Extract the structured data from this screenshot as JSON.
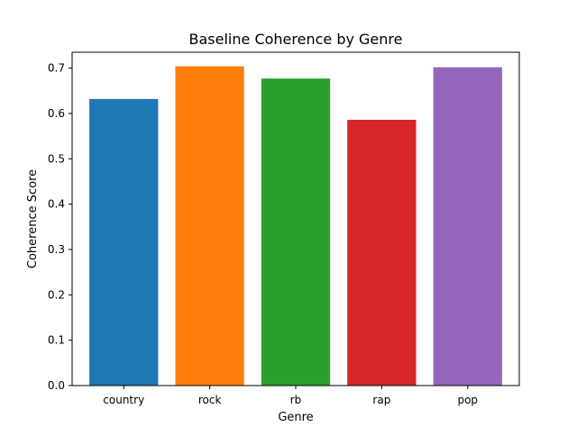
{
  "chart_data": {
    "type": "bar",
    "title": "Baseline Coherence by Genre",
    "xlabel": "Genre",
    "ylabel": "Coherence Score",
    "categories": [
      "country",
      "rock",
      "rb",
      "rap",
      "pop"
    ],
    "values": [
      0.632,
      0.704,
      0.677,
      0.586,
      0.702
    ],
    "colors": [
      "#1f77b4",
      "#ff7f0e",
      "#2ca02c",
      "#d62728",
      "#9467bd"
    ],
    "ylim": [
      0,
      0.735
    ],
    "yticks": [
      0.0,
      0.1,
      0.2,
      0.3,
      0.4,
      0.5,
      0.6,
      0.7
    ],
    "ytick_labels": [
      "0.0",
      "0.1",
      "0.2",
      "0.3",
      "0.4",
      "0.5",
      "0.6",
      "0.7"
    ],
    "grid": false,
    "legend": "none"
  }
}
